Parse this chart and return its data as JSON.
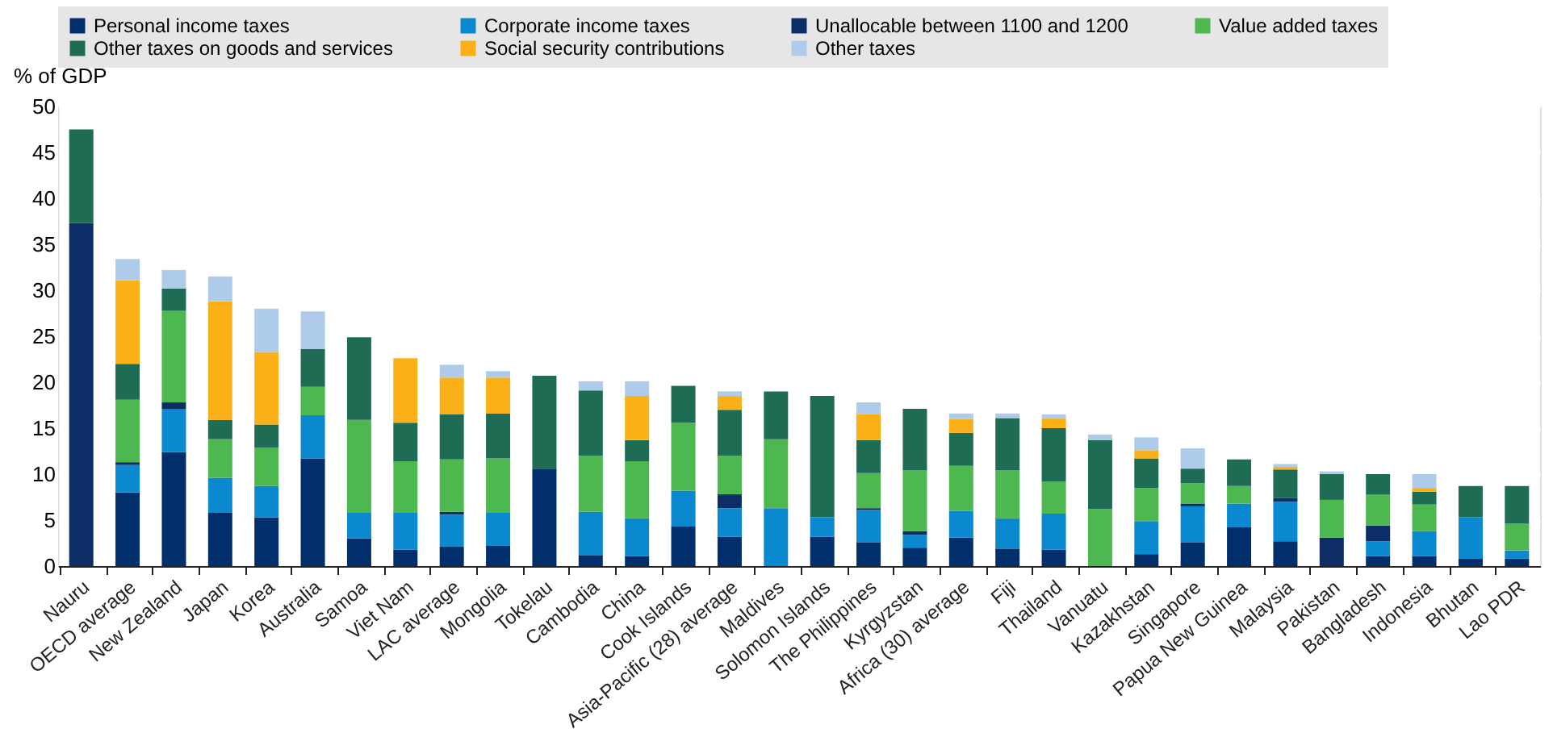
{
  "chart_data": {
    "type": "bar",
    "stacked": true,
    "ylabel": "% of GDP",
    "ylim": [
      0,
      50
    ],
    "yticks": [
      0,
      5,
      10,
      15,
      20,
      25,
      30,
      35,
      40,
      45,
      50
    ],
    "grid": true,
    "legend": "top",
    "categories": [
      "Nauru",
      "OECD average",
      "New Zealand",
      "Japan",
      "Korea",
      "Australia",
      "Samoa",
      "Viet Nam",
      "LAC average",
      "Mongolia",
      "Tokelau",
      "Cambodia",
      "China",
      "Cook Islands",
      "Asia-Pacific (28) average",
      "Maldives",
      "Solomon Islands",
      "The Philippines",
      "Kyrgyzstan",
      "Africa (30) average",
      "Fiji",
      "Thailand",
      "Vanuatu",
      "Kazakhstan",
      "Singapore",
      "Papua New Guinea",
      "Malaysia",
      "Pakistan",
      "Bangladesh",
      "Indonesia",
      "Bhutan",
      "Lao PDR"
    ],
    "series": [
      {
        "name": "Personal income taxes",
        "color": "#002f6c",
        "values": [
          null,
          8.0,
          12.4,
          5.8,
          5.3,
          11.7,
          3.0,
          1.8,
          2.1,
          2.2,
          10.6,
          1.2,
          1.1,
          4.3,
          3.2,
          null,
          3.2,
          2.6,
          2.0,
          3.1,
          1.9,
          1.8,
          null,
          1.3,
          2.6,
          4.2,
          2.7,
          null,
          1.1,
          1.1,
          0.8,
          0.8
        ]
      },
      {
        "name": "Corporate income taxes",
        "color": "#0a88d0",
        "values": [
          null,
          3.0,
          4.7,
          3.8,
          3.4,
          4.7,
          2.8,
          4.0,
          3.5,
          3.6,
          null,
          4.7,
          4.1,
          3.9,
          3.1,
          6.3,
          2.1,
          3.5,
          1.4,
          2.9,
          3.3,
          3.9,
          null,
          3.6,
          3.9,
          2.6,
          4.3,
          null,
          1.6,
          2.7,
          4.5,
          0.9
        ]
      },
      {
        "name": "Unallocable between 1100 and 1200",
        "color": "#0c2d66",
        "values": [
          37.3,
          0.3,
          0.7,
          null,
          null,
          null,
          null,
          null,
          0.3,
          null,
          null,
          null,
          null,
          null,
          1.5,
          null,
          null,
          0.2,
          0.4,
          null,
          null,
          null,
          null,
          null,
          0.3,
          null,
          0.4,
          3.1,
          1.7,
          null,
          null,
          null
        ]
      },
      {
        "name": "Value added taxes",
        "color": "#4cb84f",
        "values": [
          null,
          6.8,
          10.0,
          4.2,
          4.2,
          3.1,
          10.1,
          5.6,
          5.7,
          5.9,
          null,
          6.1,
          6.2,
          7.4,
          4.2,
          7.5,
          null,
          3.8,
          6.6,
          4.9,
          5.2,
          3.5,
          6.2,
          3.6,
          2.2,
          1.9,
          null,
          4.1,
          3.4,
          2.9,
          null,
          2.9
        ]
      },
      {
        "name": "Other taxes on goods and services",
        "color": "#1f6c55",
        "values": [
          10.2,
          3.9,
          2.4,
          2.1,
          2.5,
          4.1,
          9.0,
          4.2,
          4.9,
          4.9,
          10.1,
          7.1,
          2.3,
          4.0,
          5.0,
          5.2,
          13.2,
          3.6,
          6.7,
          3.6,
          5.7,
          5.8,
          7.5,
          3.2,
          1.6,
          2.9,
          3.1,
          2.8,
          2.2,
          1.4,
          3.4,
          4.1
        ]
      },
      {
        "name": "Social security contributions",
        "color": "#fbb018",
        "values": [
          null,
          9.1,
          null,
          12.9,
          7.9,
          null,
          null,
          7.0,
          4.0,
          3.9,
          null,
          null,
          4.8,
          null,
          1.5,
          null,
          null,
          2.8,
          null,
          1.5,
          null,
          1.1,
          null,
          0.9,
          null,
          null,
          0.3,
          null,
          null,
          0.4,
          null,
          null
        ]
      },
      {
        "name": "Other taxes",
        "color": "#aecbea",
        "values": [
          null,
          2.3,
          2.0,
          2.7,
          4.7,
          4.1,
          null,
          null,
          1.4,
          0.7,
          null,
          1.0,
          1.6,
          null,
          0.5,
          null,
          null,
          1.3,
          null,
          0.6,
          0.5,
          0.4,
          0.6,
          1.4,
          2.2,
          null,
          0.3,
          0.3,
          null,
          1.5,
          null,
          null
        ]
      }
    ]
  }
}
